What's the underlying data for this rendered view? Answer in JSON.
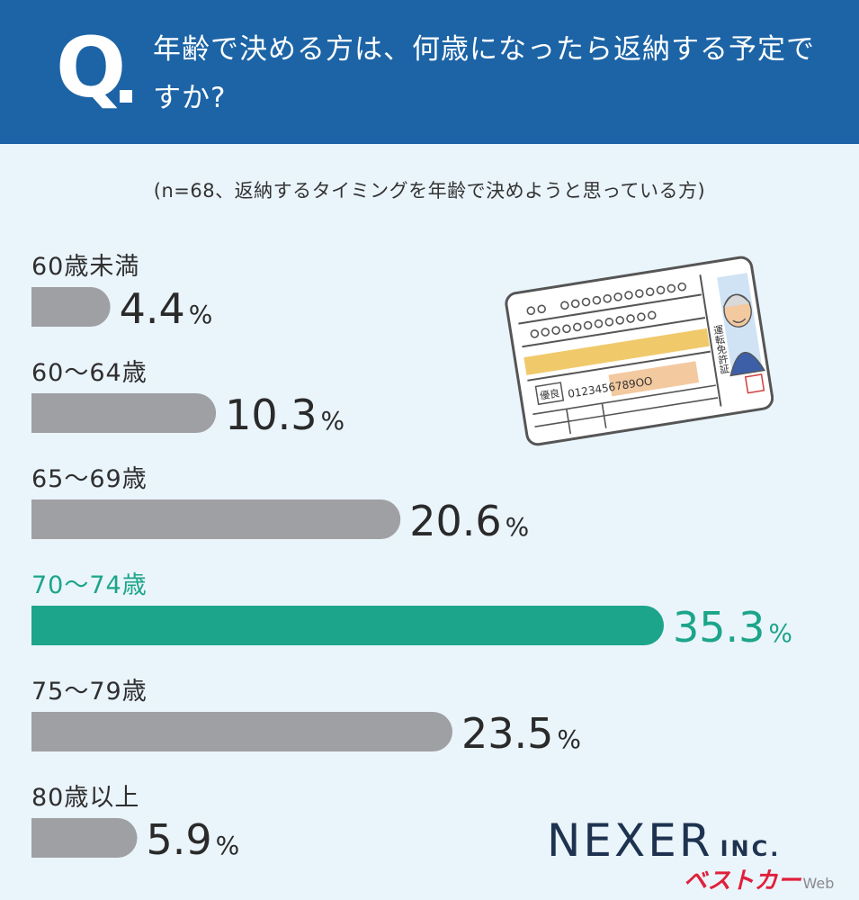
{
  "header": {
    "q_mark": "Q",
    "question": "年齢で決める方は、何歳になったら返納する予定ですか?"
  },
  "note": "(n=68、返納するタイミングを年齢で決めようと思っている方)",
  "colors": {
    "header_bg": "#1c64a6",
    "bar_default": "#9fa0a3",
    "bar_highlight": "#1ca58a",
    "background": "#eaf4fb"
  },
  "chart_data": {
    "type": "bar",
    "orientation": "horizontal",
    "categories": [
      "60歳未満",
      "60～64歳",
      "65～69歳",
      "70～74歳",
      "75～79歳",
      "80歳以上"
    ],
    "values": [
      4.4,
      10.3,
      20.6,
      35.3,
      23.5,
      5.9
    ],
    "value_labels": [
      "4.4",
      "10.3",
      "20.6",
      "35.3",
      "23.5",
      "5.9"
    ],
    "unit": "%",
    "highlight_index": 3,
    "xlim": [
      0,
      37
    ]
  },
  "illustration": {
    "name": "driver-license-card",
    "card_number": "0123456789OO",
    "vertical_text": "運転免許証",
    "stamp": "優良"
  },
  "logo": {
    "main": "NEXER",
    "suffix": "INC."
  },
  "watermark": {
    "main": "ベストカー",
    "suffix": "Web"
  }
}
